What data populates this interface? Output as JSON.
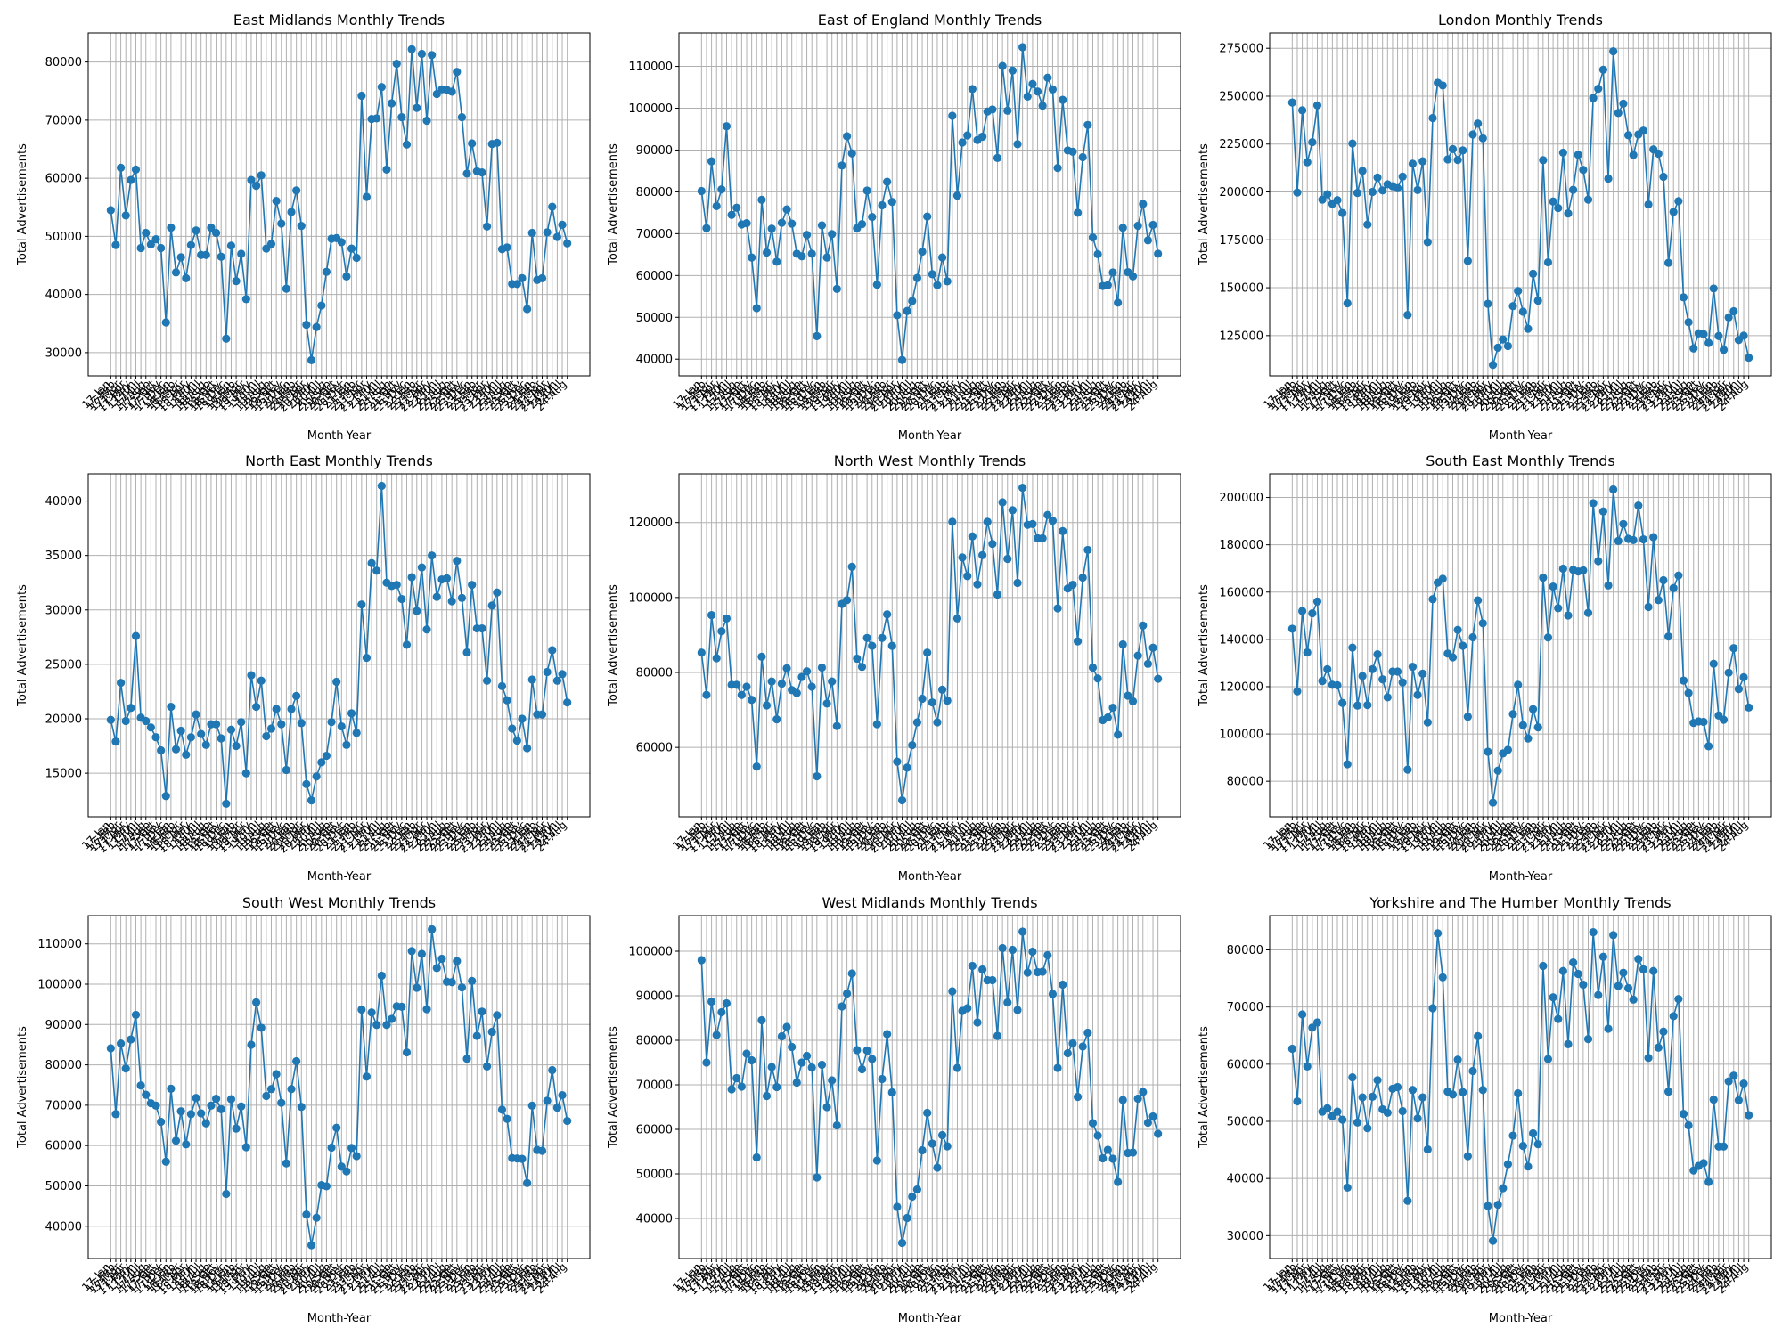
{
  "figure": {
    "colors": {
      "series": "#1f77b4",
      "grid": "#b0b0b0",
      "axis": "#000000"
    }
  },
  "chart_data": [
    {
      "type": "line",
      "title": "East Midlands Monthly Trends",
      "xlabel": "Month-Year",
      "ylabel": "Total Advertisements",
      "ylim": [
        26000,
        85000
      ],
      "yticks": [
        30000,
        40000,
        50000,
        60000,
        70000,
        80000
      ],
      "grid": true,
      "values": [
        54500,
        48500,
        61800,
        53600,
        59700,
        61500,
        48000,
        50600,
        48600,
        49500,
        48000,
        35200,
        51500,
        43800,
        46400,
        42800,
        48500,
        51000,
        46800,
        46800,
        51500,
        50600,
        46500,
        32400,
        48400,
        42300,
        47000,
        39200,
        59700,
        58700,
        60500,
        47900,
        48700,
        56100,
        52200,
        41000,
        54200,
        57900,
        51800,
        34800,
        28700,
        34400,
        38100,
        43900,
        49600,
        49700,
        49000,
        43100,
        47900,
        46300,
        74200,
        56800,
        70200,
        70300,
        75700,
        61500,
        72900,
        79700,
        70500,
        65800,
        82200,
        72100,
        81400,
        69900,
        81200,
        74500,
        75300,
        75200,
        74900,
        78300,
        70500,
        60800,
        66000,
        61200,
        61000,
        51700,
        65900,
        66100,
        47800,
        48100,
        41800,
        41800,
        42800,
        37500,
        50600,
        42500,
        42800,
        50700,
        55100,
        49900,
        52000,
        48800
      ]
    },
    {
      "type": "line",
      "title": "East of England Monthly Trends",
      "xlabel": "Month-Year",
      "ylabel": "Total Advertisements",
      "ylim": [
        36000,
        118000
      ],
      "yticks": [
        40000,
        50000,
        60000,
        70000,
        80000,
        90000,
        100000,
        110000
      ],
      "grid": true,
      "values": [
        80200,
        71300,
        87300,
        76600,
        80600,
        95700,
        74500,
        76200,
        72200,
        72500,
        64300,
        52200,
        78100,
        65500,
        71200,
        63300,
        72600,
        75800,
        72400,
        65200,
        64600,
        69700,
        65200,
        45500,
        72000,
        64300,
        69900,
        56800,
        86300,
        93300,
        89200,
        71300,
        72300,
        80300,
        74000,
        57800,
        76800,
        82400,
        77600,
        50500,
        39800,
        51500,
        53900,
        59400,
        65700,
        74100,
        60300,
        57700,
        64300,
        58600,
        98200,
        79100,
        91800,
        93500,
        104600,
        92400,
        93200,
        99200,
        99700,
        88100,
        110100,
        99400,
        109000,
        91400,
        114600,
        102800,
        105800,
        104000,
        100600,
        107300,
        104500,
        85700,
        102000,
        89900,
        89600,
        75000,
        88300,
        96000,
        69100,
        65100,
        57500,
        57700,
        60700,
        53500,
        71400,
        60800,
        59800,
        71900,
        77100,
        68400,
        72100,
        65200
      ]
    },
    {
      "type": "line",
      "title": "London Monthly Trends",
      "xlabel": "Month-Year",
      "ylabel": "Total Advertisements",
      "ylim": [
        104000,
        283000
      ],
      "yticks": [
        125000,
        150000,
        175000,
        200000,
        225000,
        250000,
        275000
      ],
      "grid": true,
      "values": [
        246700,
        199700,
        242600,
        215500,
        226000,
        245200,
        196000,
        198800,
        193800,
        195700,
        189000,
        141900,
        225300,
        199500,
        211000,
        183000,
        200000,
        207500,
        200800,
        204000,
        203000,
        202000,
        208000,
        135800,
        214700,
        201000,
        216000,
        173800,
        238600,
        257000,
        255600,
        217000,
        222400,
        216700,
        221700,
        164000,
        230000,
        235700,
        228000,
        141600,
        109700,
        118700,
        123000,
        119600,
        140400,
        148300,
        137500,
        128600,
        157300,
        143300,
        216600,
        163300,
        195000,
        191600,
        220500,
        188800,
        201100,
        219400,
        211500,
        196000,
        249000,
        253900,
        263800,
        207000,
        273400,
        241200,
        246100,
        229600,
        219300,
        230000,
        232000,
        193500,
        222200,
        220000,
        207900,
        163000,
        189600,
        195200,
        145000,
        132000,
        118300,
        126200,
        125800,
        121200,
        149600,
        124800,
        117600,
        134500,
        137700,
        122700,
        125000,
        113500
      ]
    },
    {
      "type": "line",
      "title": "North East Monthly Trends",
      "xlabel": "Month-Year",
      "ylabel": "Total Advertisements",
      "ylim": [
        11000,
        42500
      ],
      "yticks": [
        15000,
        20000,
        25000,
        30000,
        35000,
        40000
      ],
      "grid": true,
      "values": [
        19900,
        17900,
        23300,
        19800,
        21000,
        27600,
        20100,
        19800,
        19200,
        18300,
        17100,
        12900,
        21100,
        17200,
        18900,
        16700,
        18300,
        20400,
        18600,
        17600,
        19500,
        19500,
        18200,
        12200,
        19000,
        17500,
        19700,
        15000,
        24000,
        21100,
        23500,
        18400,
        19100,
        20900,
        19500,
        15300,
        20900,
        22100,
        19600,
        14000,
        12500,
        14700,
        16000,
        16600,
        19700,
        23400,
        19300,
        17600,
        20500,
        18700,
        30500,
        25600,
        34300,
        33600,
        41400,
        32500,
        32200,
        32300,
        31000,
        26800,
        33000,
        29900,
        33900,
        28200,
        35000,
        31200,
        32800,
        32900,
        30800,
        34500,
        31100,
        26100,
        32300,
        28300,
        28300,
        23500,
        30400,
        31600,
        23000,
        21700,
        19100,
        18000,
        20000,
        17300,
        23600,
        20400,
        20400,
        24300,
        26300,
        23500,
        24100,
        21500
      ]
    },
    {
      "type": "line",
      "title": "North West Monthly Trends",
      "xlabel": "Month-Year",
      "ylabel": "Total Advertisements",
      "ylim": [
        41500,
        133000
      ],
      "yticks": [
        60000,
        80000,
        100000,
        120000
      ],
      "grid": true,
      "values": [
        85300,
        74000,
        95300,
        83800,
        91000,
        94400,
        76700,
        76700,
        74000,
        76200,
        72700,
        54900,
        84200,
        71200,
        77600,
        67500,
        77000,
        81100,
        75300,
        74500,
        78800,
        80300,
        76200,
        52300,
        81300,
        71700,
        77600,
        65700,
        98300,
        99300,
        108200,
        83700,
        81500,
        89200,
        87100,
        66200,
        89200,
        95500,
        87100,
        56200,
        45900,
        54600,
        60600,
        66700,
        73000,
        85300,
        72000,
        66700,
        75400,
        72500,
        120200,
        94400,
        110700,
        105700,
        116300,
        103500,
        111300,
        120200,
        114300,
        100800,
        125400,
        110300,
        123300,
        103900,
        129300,
        119400,
        119600,
        115800,
        115800,
        122000,
        120500,
        97100,
        117700,
        102400,
        103400,
        88300,
        105300,
        112700,
        81300,
        78400,
        67300,
        68000,
        70600,
        63400,
        87500,
        73800,
        72300,
        84500,
        92500,
        82300,
        86600,
        78300
      ]
    },
    {
      "type": "line",
      "title": "South East Monthly Trends",
      "xlabel": "Month-Year",
      "ylabel": "Total Advertisements",
      "ylim": [
        65000,
        210000
      ],
      "yticks": [
        80000,
        100000,
        120000,
        140000,
        160000,
        180000,
        200000
      ],
      "grid": true,
      "values": [
        144500,
        118000,
        152000,
        134500,
        151000,
        156000,
        122400,
        127400,
        120800,
        120600,
        113100,
        87200,
        136500,
        112000,
        124500,
        112200,
        127400,
        133700,
        123100,
        115500,
        126400,
        126400,
        121800,
        84900,
        128400,
        116500,
        125500,
        104900,
        157000,
        164000,
        165600,
        134000,
        132400,
        144000,
        137300,
        107300,
        140900,
        156500,
        146800,
        92500,
        71000,
        84500,
        91800,
        93300,
        108400,
        120800,
        103700,
        98100,
        110500,
        102800,
        166100,
        140800,
        162300,
        153200,
        169900,
        150100,
        169400,
        168700,
        169200,
        151200,
        197600,
        173100,
        194100,
        162800,
        203400,
        181600,
        188800,
        182500,
        182000,
        196600,
        182300,
        153700,
        183200,
        156600,
        165000,
        141200,
        161700,
        167000,
        122600,
        117300,
        104700,
        105300,
        105100,
        94800,
        129700,
        107800,
        106000,
        125900,
        136300,
        119000,
        124000,
        111200
      ]
    },
    {
      "type": "line",
      "title": "South West Monthly Trends",
      "xlabel": "Month-Year",
      "ylabel": "Total Advertisements",
      "ylim": [
        32000,
        117000
      ],
      "yticks": [
        40000,
        50000,
        60000,
        70000,
        80000,
        90000,
        100000,
        110000
      ],
      "grid": true,
      "values": [
        84100,
        67800,
        85300,
        79100,
        86300,
        92400,
        74900,
        72600,
        70500,
        69900,
        65900,
        56000,
        74100,
        61200,
        68500,
        60300,
        67800,
        71800,
        68000,
        65500,
        69900,
        71600,
        69000,
        48000,
        71500,
        64200,
        69700,
        59600,
        85000,
        95500,
        89200,
        72300,
        74000,
        77700,
        70600,
        55600,
        74000,
        80900,
        69600,
        42900,
        35300,
        42100,
        50200,
        49900,
        59500,
        64400,
        54800,
        53600,
        59400,
        57400,
        93700,
        77100,
        93000,
        89900,
        102100,
        89900,
        91400,
        94500,
        94400,
        83100,
        108200,
        99100,
        107500,
        93800,
        113600,
        104000,
        106300,
        100600,
        100500,
        105700,
        99200,
        81500,
        100800,
        87200,
        93200,
        79600,
        88200,
        92300,
        68900,
        66600,
        56900,
        56800,
        56700,
        50700,
        69900,
        58900,
        58700,
        71100,
        78700,
        69400,
        72500,
        66100
      ]
    },
    {
      "type": "line",
      "title": "West Midlands Monthly Trends",
      "xlabel": "Month-Year",
      "ylabel": "Total Advertisements",
      "ylim": [
        31000,
        108000
      ],
      "yticks": [
        40000,
        50000,
        60000,
        70000,
        80000,
        90000,
        100000
      ],
      "grid": true,
      "values": [
        98000,
        75000,
        88700,
        81200,
        86300,
        88300,
        69000,
        71500,
        69600,
        77000,
        75500,
        53700,
        84500,
        67500,
        74000,
        69500,
        80900,
        83000,
        78500,
        70500,
        75000,
        76500,
        73900,
        49200,
        74500,
        65000,
        71000,
        60900,
        87600,
        90500,
        95000,
        77800,
        73500,
        77700,
        75800,
        53000,
        71300,
        81400,
        68300,
        42600,
        34500,
        40100,
        44900,
        46500,
        55300,
        63700,
        56800,
        51400,
        58700,
        56200,
        91000,
        73800,
        86600,
        87200,
        96700,
        84000,
        95900,
        93500,
        93500,
        81000,
        100700,
        88500,
        100300,
        86800,
        104400,
        95200,
        99900,
        95300,
        95400,
        99100,
        90400,
        73800,
        92500,
        77100,
        79300,
        67300,
        78600,
        81700,
        61400,
        58600,
        53500,
        55400,
        53400,
        48200,
        66600,
        54700,
        54800,
        66900,
        68400,
        61500,
        62900,
        59000
      ]
    },
    {
      "type": "line",
      "title": "Yorkshire and The Humber Monthly Trends",
      "xlabel": "Month-Year",
      "ylabel": "Total Advertisements",
      "ylim": [
        26000,
        86000
      ],
      "yticks": [
        30000,
        40000,
        50000,
        60000,
        70000,
        80000
      ],
      "grid": true,
      "values": [
        62700,
        53500,
        68700,
        59600,
        66400,
        67300,
        51700,
        52300,
        50900,
        51700,
        50300,
        38400,
        57700,
        49800,
        54200,
        48800,
        54300,
        57200,
        52100,
        51500,
        55700,
        56000,
        51800,
        36100,
        55500,
        50500,
        54200,
        45100,
        69800,
        82900,
        75200,
        55200,
        54700,
        60800,
        55100,
        43900,
        58800,
        64900,
        55500,
        35200,
        29100,
        35400,
        38300,
        42500,
        47500,
        54900,
        45700,
        42100,
        47900,
        46000,
        77200,
        60900,
        71700,
        67900,
        76300,
        63500,
        77800,
        75800,
        73900,
        64400,
        83100,
        72100,
        78800,
        66200,
        82600,
        73700,
        76000,
        73300,
        71300,
        78400,
        76600,
        61100,
        76300,
        62900,
        65700,
        55200,
        68400,
        71400,
        51300,
        49300,
        41400,
        42200,
        42700,
        39400,
        53800,
        45600,
        45600,
        57000,
        58000,
        53700,
        56600,
        51100
      ]
    }
  ]
}
